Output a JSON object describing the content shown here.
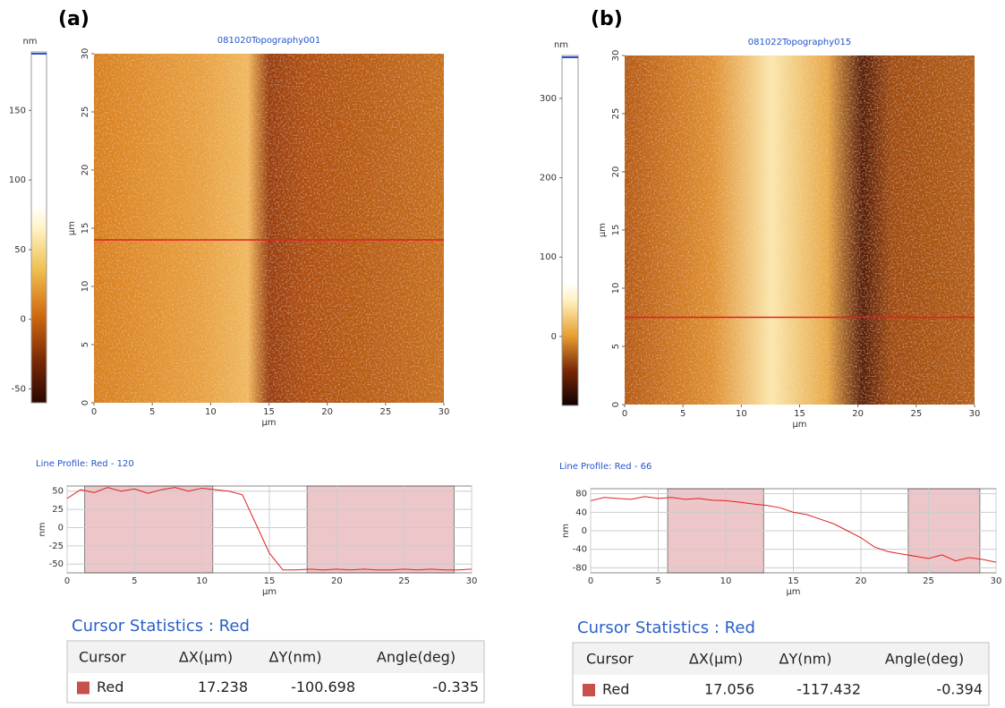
{
  "panels": [
    {
      "label": "(a)",
      "colorbar": {
        "unit": "nm",
        "ticks": [
          150,
          100,
          50,
          0,
          -50
        ],
        "lim": [
          -60,
          192
        ]
      },
      "image": {
        "title": "081020Topography001",
        "x_unit": "µm",
        "y_unit": "µm",
        "lim": [
          0,
          30
        ],
        "xticks": [
          0,
          5,
          10,
          15,
          20,
          25,
          30
        ],
        "yticks": [
          0,
          5,
          10,
          15,
          20,
          25,
          30
        ],
        "cursor_y": 14
      },
      "profile": {
        "title": "Line Profile: Red  -  120",
        "x_unit": "µm",
        "y_unit": "nm",
        "xlim": [
          0,
          30
        ],
        "ylim": [
          -62,
          57
        ],
        "xticks": [
          0,
          5,
          10,
          15,
          20,
          25,
          30
        ],
        "yticks": [
          50,
          25,
          0,
          -25,
          -50
        ],
        "x": [
          0,
          1,
          2,
          3,
          4,
          5,
          6,
          7,
          8,
          9,
          10,
          11,
          12,
          13,
          14,
          15,
          16,
          17,
          18,
          19,
          20,
          21,
          22,
          23,
          24,
          25,
          26,
          27,
          28,
          29,
          30
        ],
        "values": [
          40,
          52,
          48,
          55,
          50,
          53,
          47,
          52,
          55,
          50,
          54,
          52,
          50,
          45,
          5,
          -35,
          -58,
          -58,
          -57,
          -58,
          -57,
          -58,
          -57,
          -58,
          -58,
          -57,
          -58,
          -57,
          -58,
          -58,
          -57
        ],
        "shaded": [
          [
            1.3,
            10.8
          ],
          [
            17.8,
            28.7
          ]
        ]
      },
      "stats": {
        "title": "Cursor Statistics : Red",
        "headers": [
          "Cursor",
          "ΔX(µm)",
          "ΔY(nm)",
          "Angle(deg)"
        ],
        "row": [
          "Red",
          17.238,
          -100.698,
          -0.335
        ]
      }
    },
    {
      "label": "(b)",
      "colorbar": {
        "unit": "nm",
        "ticks": [
          300,
          200,
          100,
          0
        ],
        "lim": [
          -87,
          354
        ]
      },
      "image": {
        "title": "081022Topography015",
        "x_unit": "µm",
        "y_unit": "µm",
        "lim": [
          0,
          30
        ],
        "xticks": [
          0,
          5,
          10,
          15,
          20,
          25,
          30
        ],
        "yticks": [
          0,
          5,
          10,
          15,
          20,
          25,
          30
        ],
        "cursor_y": 7.5
      },
      "profile": {
        "title": "Line Profile: Red  -  66",
        "x_unit": "µm",
        "y_unit": "nm",
        "xlim": [
          0,
          30
        ],
        "ylim": [
          -91,
          91
        ],
        "xticks": [
          0,
          5,
          10,
          15,
          20,
          25,
          30
        ],
        "yticks": [
          80,
          40,
          0,
          -40,
          -80
        ],
        "x": [
          0,
          1,
          2,
          3,
          4,
          5,
          6,
          7,
          8,
          9,
          10,
          11,
          12,
          13,
          14,
          15,
          16,
          17,
          18,
          19,
          20,
          21,
          22,
          23,
          24,
          25,
          26,
          27,
          28,
          29,
          30
        ],
        "values": [
          65,
          72,
          70,
          68,
          74,
          70,
          72,
          68,
          70,
          66,
          65,
          62,
          58,
          55,
          50,
          40,
          35,
          25,
          15,
          0,
          -15,
          -35,
          -45,
          -50,
          -55,
          -60,
          -52,
          -65,
          -58,
          -62,
          -68
        ],
        "shaded": [
          [
            5.7,
            12.8
          ],
          [
            23.5,
            28.8
          ]
        ]
      },
      "stats": {
        "title": "Cursor Statistics : Red",
        "headers": [
          "Cursor",
          "ΔX(µm)",
          "ΔY(nm)",
          "Angle(deg)"
        ],
        "row": [
          "Red",
          17.056,
          -117.432,
          -0.394
        ]
      }
    }
  ]
}
